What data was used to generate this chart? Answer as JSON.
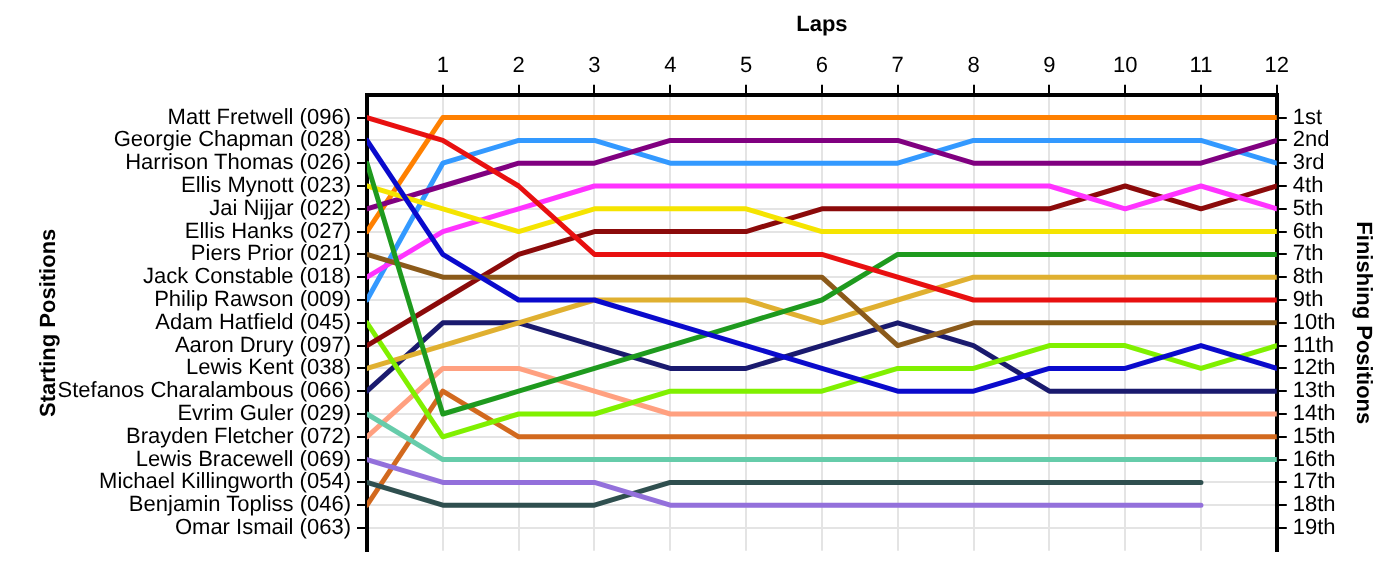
{
  "chart_data": {
    "type": "line",
    "xlabel": "Laps",
    "ylabel": "Finishing Positions",
    "x": [
      0,
      1,
      2,
      3,
      4,
      5,
      6,
      7,
      8,
      9,
      10,
      11,
      12
    ],
    "xlim": [
      0,
      12
    ],
    "xticks": [
      1,
      2,
      3,
      4,
      5,
      6,
      7,
      8,
      9,
      10,
      11,
      12
    ],
    "ylim": [
      20,
      0
    ],
    "yticks": [
      {
        "value": 1,
        "label": "1st"
      },
      {
        "value": 2,
        "label": "2nd"
      },
      {
        "value": 3,
        "label": "3rd"
      },
      {
        "value": 4,
        "label": "4th"
      },
      {
        "value": 5,
        "label": "5th"
      },
      {
        "value": 6,
        "label": "6th"
      },
      {
        "value": 7,
        "label": "7th"
      },
      {
        "value": 8,
        "label": "8th"
      },
      {
        "value": 9,
        "label": "9th"
      },
      {
        "value": 10,
        "label": "10th"
      },
      {
        "value": 11,
        "label": "11th"
      },
      {
        "value": 12,
        "label": "12th"
      },
      {
        "value": 13,
        "label": "13th"
      },
      {
        "value": 14,
        "label": "14th"
      },
      {
        "value": 15,
        "label": "15th"
      },
      {
        "value": 16,
        "label": "16th"
      },
      {
        "value": 17,
        "label": "17th"
      },
      {
        "value": 18,
        "label": "18th"
      },
      {
        "value": 19,
        "label": "19th"
      }
    ],
    "annotations": [
      "Starting Positions",
      "Matt Fretwell (096)",
      "Georgie Chapman (028)",
      "Harrison Thomas (026)",
      "Ellis Mynott (023)",
      "Jai Nijjar (022)",
      "Ellis Hanks (027)",
      "Piers Prior (021)",
      "Jack Constable (018)",
      "Philip Rawson (009)",
      "Adam Hatfield (045)",
      "Aaron Drury (097)",
      "Lewis Kent (038)",
      "Stefanos Charalambous (066)",
      "Evrim Guler (029)",
      "Brayden Fletcher (072)",
      "Lewis Bracewell (069)",
      "Michael Killingworth (054)",
      "Benjamin Topliss (046)",
      "Omar Ismail (063)"
    ],
    "grid": true,
    "legend": false,
    "marker": "none",
    "line_style": "solid",
    "series": [
      {
        "color": "#e81010",
        "values": [
          1,
          2,
          4,
          7,
          7,
          7,
          7,
          8,
          9,
          9,
          9,
          9,
          9
        ]
      },
      {
        "color": "#0a0acc",
        "values": [
          2,
          7,
          9,
          9,
          10,
          11,
          12,
          13,
          13,
          12,
          12,
          11,
          12
        ]
      },
      {
        "color": "#1e9a1e",
        "values": [
          3,
          14,
          13,
          12,
          11,
          10,
          9,
          7,
          7,
          7,
          7,
          7,
          7
        ]
      },
      {
        "color": "#f5e400",
        "values": [
          4,
          5,
          6,
          5,
          5,
          5,
          6,
          6,
          6,
          6,
          6,
          6,
          6
        ]
      },
      {
        "color": "#800080",
        "values": [
          5,
          4,
          3,
          3,
          2,
          2,
          2,
          2,
          3,
          3,
          3,
          3,
          2
        ]
      },
      {
        "color": "#ff8000",
        "values": [
          6,
          1,
          1,
          1,
          1,
          1,
          1,
          1,
          1,
          1,
          1,
          1,
          1
        ]
      },
      {
        "color": "#8b5a1a",
        "values": [
          7,
          8,
          8,
          8,
          8,
          8,
          8,
          11,
          10,
          10,
          10,
          10,
          10
        ]
      },
      {
        "color": "#ff33ff",
        "values": [
          8,
          6,
          5,
          4,
          4,
          4,
          4,
          4,
          4,
          4,
          5,
          4,
          5
        ]
      },
      {
        "color": "#3399ff",
        "values": [
          9,
          3,
          2,
          2,
          3,
          3,
          3,
          3,
          2,
          2,
          2,
          2,
          3
        ]
      },
      {
        "color": "#8b0a0a",
        "values": [
          11,
          9,
          7,
          6,
          6,
          6,
          5,
          5,
          5,
          5,
          4,
          5,
          4
        ]
      },
      {
        "color": "#80f000",
        "values": [
          10,
          15,
          14,
          14,
          13,
          13,
          13,
          12,
          12,
          11,
          11,
          12,
          11
        ]
      },
      {
        "color": "#e0b030",
        "values": [
          12,
          11,
          10,
          9,
          9,
          9,
          10,
          9,
          8,
          8,
          8,
          8,
          8
        ]
      },
      {
        "color": "#1a1a6e",
        "values": [
          13,
          10,
          10,
          11,
          12,
          12,
          11,
          10,
          11,
          13,
          13,
          13,
          13
        ]
      },
      {
        "color": "#66ccaa",
        "values": [
          14,
          16,
          16,
          16,
          16,
          16,
          16,
          16,
          16,
          16,
          16,
          16,
          16
        ]
      },
      {
        "color": "#ffa080",
        "values": [
          15,
          12,
          12,
          13,
          14,
          14,
          14,
          14,
          14,
          14,
          14,
          14,
          14
        ]
      },
      {
        "color": "#9370db",
        "values": [
          16,
          17,
          17,
          17,
          18,
          18,
          18,
          18,
          18,
          18,
          18,
          18,
          null
        ]
      },
      {
        "color": "#2f4f4f",
        "values": [
          17,
          18,
          18,
          18,
          17,
          17,
          17,
          17,
          17,
          17,
          17,
          17,
          null
        ]
      },
      {
        "color": "#d2691e",
        "values": [
          18,
          13,
          15,
          15,
          15,
          15,
          15,
          15,
          15,
          15,
          15,
          15,
          15
        ]
      }
    ]
  }
}
